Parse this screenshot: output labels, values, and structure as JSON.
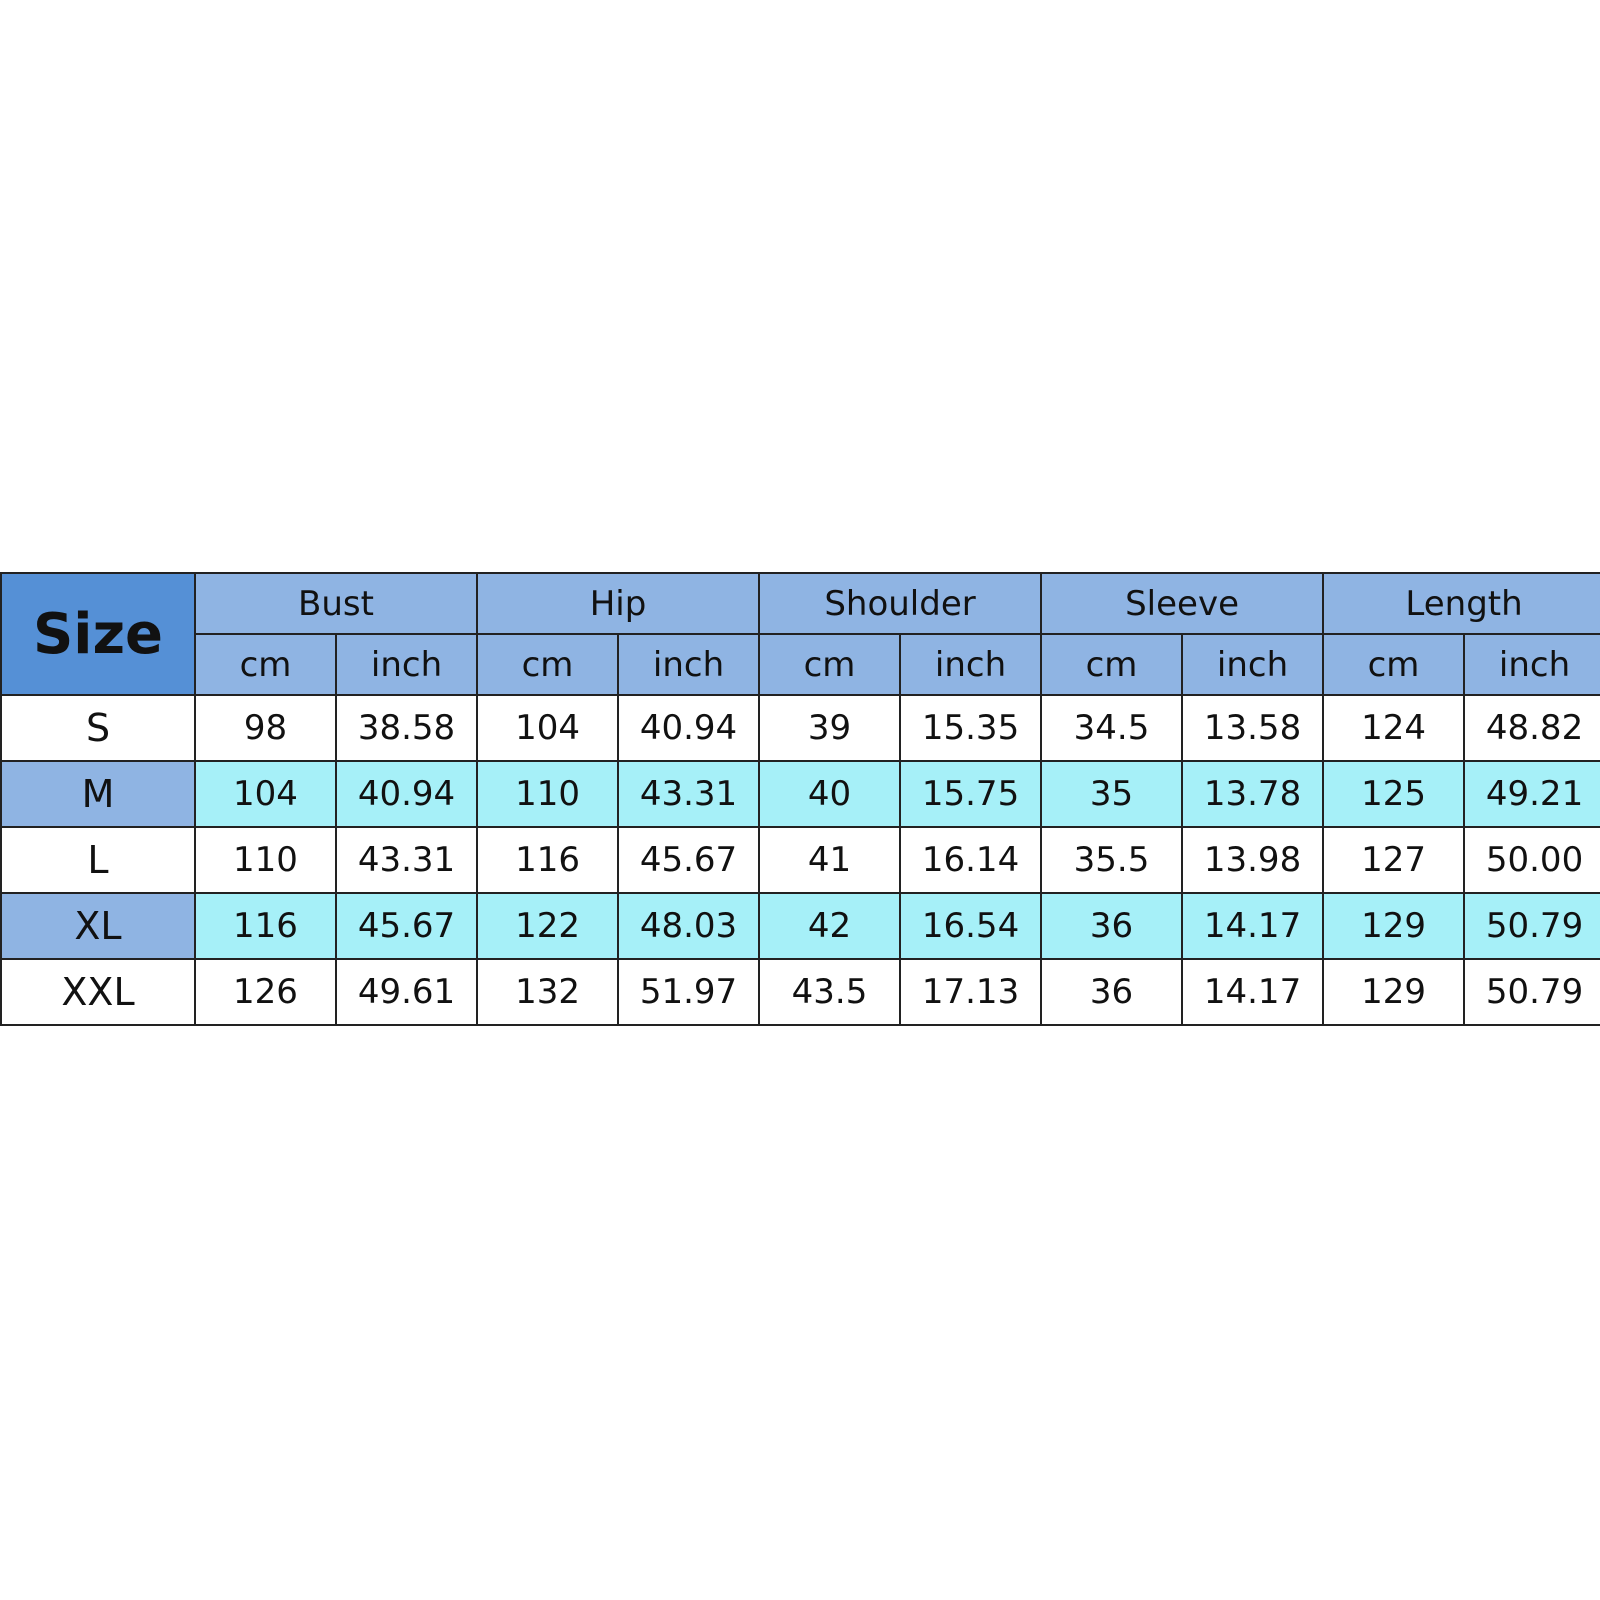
{
  "table": {
    "size_label": "Size",
    "groups": [
      "Bust",
      "Hip",
      "Shoulder",
      "Sleeve",
      "Length"
    ],
    "units": [
      "cm",
      "inch"
    ],
    "rows": [
      {
        "size": "S",
        "values": [
          "98",
          "38.58",
          "104",
          "40.94",
          "39",
          "15.35",
          "34.5",
          "13.58",
          "124",
          "48.82"
        ]
      },
      {
        "size": "M",
        "values": [
          "104",
          "40.94",
          "110",
          "43.31",
          "40",
          "15.75",
          "35",
          "13.78",
          "125",
          "49.21"
        ]
      },
      {
        "size": "L",
        "values": [
          "110",
          "43.31",
          "116",
          "45.67",
          "41",
          "16.14",
          "35.5",
          "13.98",
          "127",
          "50.00"
        ]
      },
      {
        "size": "XL",
        "values": [
          "116",
          "45.67",
          "122",
          "48.03",
          "42",
          "16.54",
          "36",
          "14.17",
          "129",
          "50.79"
        ]
      },
      {
        "size": "XXL",
        "values": [
          "126",
          "49.61",
          "132",
          "51.97",
          "43.5",
          "17.13",
          "36",
          "14.17",
          "129",
          "50.79"
        ]
      }
    ]
  },
  "colors": {
    "size_header": "#5590d6",
    "header": "#8fb4e3",
    "alt_row": "#a6f0f8"
  }
}
